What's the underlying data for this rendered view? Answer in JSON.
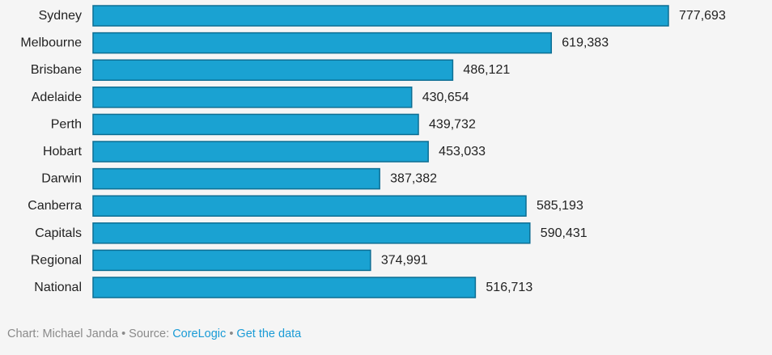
{
  "chart_data": {
    "type": "bar",
    "orientation": "horizontal",
    "title": "",
    "xlabel": "",
    "ylabel": "",
    "xlim": [
      0,
      777693
    ],
    "grid": false,
    "categories": [
      "Sydney",
      "Melbourne",
      "Brisbane",
      "Adelaide",
      "Perth",
      "Hobart",
      "Darwin",
      "Canberra",
      "Capitals",
      "Regional",
      "National"
    ],
    "values": [
      777693,
      619383,
      486121,
      430654,
      439732,
      453033,
      387382,
      585193,
      590431,
      374991,
      516713
    ],
    "value_labels": [
      "777,693",
      "619,383",
      "486,121",
      "430,654",
      "439,732",
      "453,033",
      "387,382",
      "585,193",
      "590,431",
      "374,991",
      "516,713"
    ]
  },
  "colors": {
    "bar_fill": "#1aa2d2",
    "bar_stroke": "#0d6e93",
    "footer_text": "#8a8a8a",
    "link": "#1a9bd6"
  },
  "footer": {
    "chart_prefix": "Chart:",
    "author": "Michael Janda",
    "separator": "•",
    "source_prefix": "Source:",
    "source_name": "CoreLogic",
    "get_data_label": "Get the data"
  }
}
